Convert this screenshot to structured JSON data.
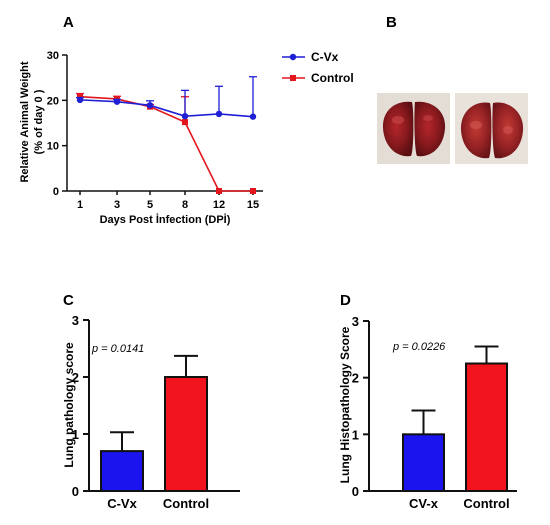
{
  "panels": {
    "a": "A",
    "b": "B",
    "c": "C",
    "d": "D"
  },
  "chart_data": [
    {
      "panel": "A",
      "type": "line",
      "xlabel": "Days Post İnfection (DPİ)",
      "ylabel": "Relative Animal Weight (% of day 0 )",
      "ylabel_lines": [
        "Relative Animal Weight",
        "(% of day 0 )"
      ],
      "x": [
        1,
        3,
        5,
        8,
        12,
        15
      ],
      "x_ticks": [
        "1",
        "3",
        "5",
        "8",
        "12",
        "15"
      ],
      "y_ticks": [
        "0",
        "10",
        "20",
        "30"
      ],
      "ylim": [
        0,
        30
      ],
      "legend_position": "right",
      "series": [
        {
          "name": "C-Vx",
          "color": "#1f1fd6",
          "marker": "circle",
          "values": [
            20.1,
            19.7,
            18.9,
            16.5,
            17.0,
            16.4
          ],
          "err_plus": [
            0.5,
            0.5,
            1.0,
            5.7,
            6.1,
            8.8
          ]
        },
        {
          "name": "Control",
          "color": "#e4161d",
          "marker": "square",
          "values": [
            20.8,
            20.3,
            18.6,
            15.2,
            0,
            0
          ],
          "err_plus": [
            0.7,
            0.6,
            0.5,
            5.6,
            0,
            0
          ]
        }
      ]
    },
    {
      "panel": "C",
      "type": "bar",
      "ylabel": "Lung pathology score",
      "categories": [
        "C-Vx",
        "Control"
      ],
      "values": [
        0.7,
        2.0
      ],
      "err_plus": [
        0.33,
        0.37
      ],
      "colors": [
        "#1c14ee",
        "#f2141c"
      ],
      "y_ticks": [
        "0",
        "1",
        "2",
        "3"
      ],
      "ylim": [
        0,
        3
      ],
      "annotation": "p = 0.0141"
    },
    {
      "panel": "D",
      "type": "bar",
      "ylabel": "Lung Histopathology Score",
      "categories": [
        "CV-x",
        "Control"
      ],
      "values": [
        1.0,
        2.25
      ],
      "err_plus": [
        0.42,
        0.3
      ],
      "colors": [
        "#1c14ee",
        "#f2141c"
      ],
      "y_ticks": [
        "0",
        "1",
        "2",
        "3"
      ],
      "ylim": [
        0,
        3
      ],
      "annotation": "p = 0.0226"
    }
  ],
  "photos": [
    {
      "name": "lung-photo-left"
    },
    {
      "name": "lung-photo-right"
    }
  ]
}
